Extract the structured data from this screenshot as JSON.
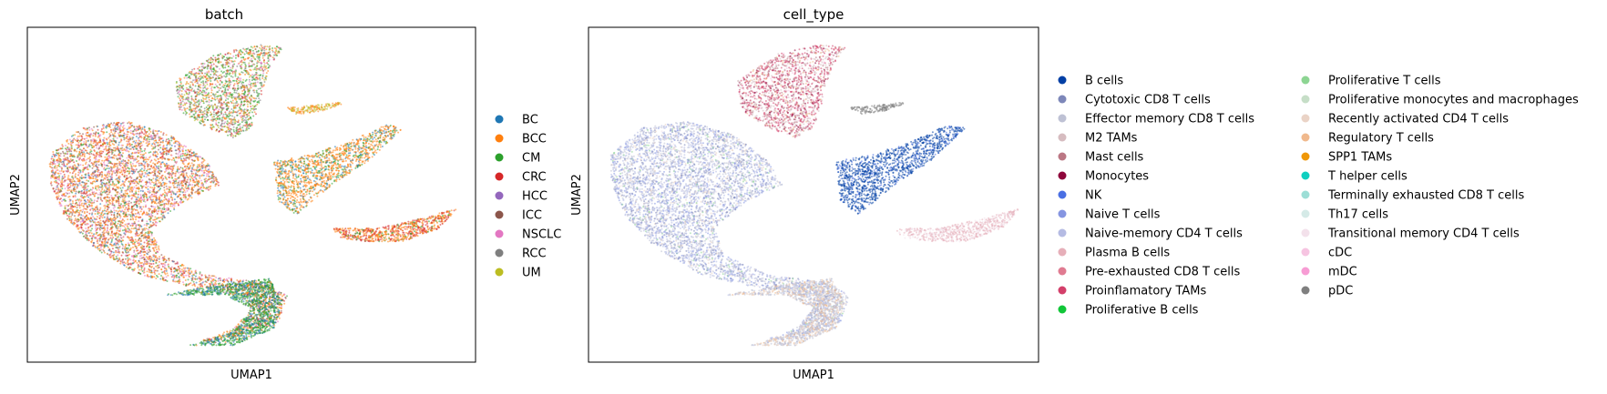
{
  "chart_data": [
    {
      "type": "scatter",
      "title": "batch",
      "xlabel": "UMAP1",
      "ylabel": "UMAP2",
      "grid": false,
      "ticks": "none",
      "legend_placement": "right",
      "legend": [
        {
          "label": "BC",
          "color": "#1f77b4"
        },
        {
          "label": "BCC",
          "color": "#ff7f0e"
        },
        {
          "label": "CM",
          "color": "#2ca02c"
        },
        {
          "label": "CRC",
          "color": "#d62728"
        },
        {
          "label": "HCC",
          "color": "#9467bd"
        },
        {
          "label": "ICC",
          "color": "#8c564b"
        },
        {
          "label": "NSCLC",
          "color": "#e377c2"
        },
        {
          "label": "RCC",
          "color": "#7f7f7f"
        },
        {
          "label": "UM",
          "color": "#bcbd22"
        }
      ],
      "regions": [
        {
          "shape": [
            [
              0.05,
              0.38
            ],
            [
              0.12,
              0.3
            ],
            [
              0.22,
              0.28
            ],
            [
              0.32,
              0.32
            ],
            [
              0.4,
              0.4
            ],
            [
              0.43,
              0.47
            ],
            [
              0.35,
              0.52
            ],
            [
              0.28,
              0.6
            ],
            [
              0.3,
              0.68
            ],
            [
              0.4,
              0.74
            ],
            [
              0.52,
              0.76
            ],
            [
              0.58,
              0.8
            ],
            [
              0.56,
              0.88
            ],
            [
              0.45,
              0.93
            ],
            [
              0.38,
              0.94
            ],
            [
              0.46,
              0.9
            ],
            [
              0.5,
              0.84
            ],
            [
              0.48,
              0.8
            ],
            [
              0.38,
              0.78
            ],
            [
              0.25,
              0.74
            ],
            [
              0.15,
              0.66
            ],
            [
              0.08,
              0.56
            ],
            [
              0.05,
              0.46
            ]
          ],
          "mix": [
            [
              "#ff7f0e",
              0.42
            ],
            [
              "#e377c2",
              0.18
            ],
            [
              "#d62728",
              0.12
            ],
            [
              "#8c564b",
              0.1
            ],
            [
              "#2ca02c",
              0.1
            ],
            [
              "#1f77b4",
              0.08
            ]
          ],
          "n": 5200
        },
        {
          "shape": [
            [
              0.3,
              0.8
            ],
            [
              0.42,
              0.77
            ],
            [
              0.54,
              0.75
            ],
            [
              0.57,
              0.82
            ],
            [
              0.55,
              0.9
            ],
            [
              0.46,
              0.95
            ],
            [
              0.36,
              0.95
            ],
            [
              0.46,
              0.91
            ],
            [
              0.5,
              0.84
            ],
            [
              0.44,
              0.8
            ]
          ],
          "mix": [
            [
              "#2ca02c",
              0.6
            ],
            [
              "#1f77b4",
              0.32
            ],
            [
              "#ff7f0e",
              0.08
            ]
          ],
          "n": 1400
        },
        {
          "shape": [
            [
              0.33,
              0.16
            ],
            [
              0.42,
              0.08
            ],
            [
              0.52,
              0.05
            ],
            [
              0.57,
              0.06
            ],
            [
              0.54,
              0.12
            ],
            [
              0.52,
              0.22
            ],
            [
              0.5,
              0.3
            ],
            [
              0.46,
              0.33
            ],
            [
              0.4,
              0.3
            ],
            [
              0.34,
              0.25
            ]
          ],
          "mix": [
            [
              "#2ca02c",
              0.3
            ],
            [
              "#7f7f7f",
              0.2
            ],
            [
              "#ff7f0e",
              0.2
            ],
            [
              "#bcbd22",
              0.1
            ],
            [
              "#d62728",
              0.1
            ],
            [
              "#e377c2",
              0.1
            ]
          ],
          "n": 1600
        },
        {
          "shape": [
            [
              0.55,
              0.4
            ],
            [
              0.63,
              0.38
            ],
            [
              0.72,
              0.34
            ],
            [
              0.8,
              0.29
            ],
            [
              0.84,
              0.3
            ],
            [
              0.76,
              0.4
            ],
            [
              0.68,
              0.47
            ],
            [
              0.6,
              0.56
            ],
            [
              0.56,
              0.52
            ]
          ],
          "mix": [
            [
              "#ff7f0e",
              0.65
            ],
            [
              "#2ca02c",
              0.2
            ],
            [
              "#1f77b4",
              0.15
            ]
          ],
          "n": 1300
        },
        {
          "shape": [
            [
              0.68,
              0.6
            ],
            [
              0.78,
              0.6
            ],
            [
              0.88,
              0.57
            ],
            [
              0.96,
              0.54
            ],
            [
              0.92,
              0.6
            ],
            [
              0.84,
              0.64
            ],
            [
              0.76,
              0.64
            ],
            [
              0.7,
              0.63
            ]
          ],
          "mix": [
            [
              "#ff7f0e",
              0.55
            ],
            [
              "#d62728",
              0.35
            ],
            [
              "#2ca02c",
              0.1
            ]
          ],
          "n": 700
        },
        {
          "shape": [
            [
              0.58,
              0.24
            ],
            [
              0.66,
              0.23
            ],
            [
              0.72,
              0.22
            ],
            [
              0.66,
              0.25
            ],
            [
              0.6,
              0.26
            ]
          ],
          "mix": [
            [
              "#bcbd22",
              0.5
            ],
            [
              "#ff7f0e",
              0.5
            ]
          ],
          "n": 150
        }
      ]
    },
    {
      "type": "scatter",
      "title": "cell_type",
      "xlabel": "UMAP1",
      "ylabel": "UMAP2",
      "grid": false,
      "ticks": "none",
      "legend_placement": "right, two columns",
      "legend": [
        {
          "label": "B cells",
          "color": "#023fa5"
        },
        {
          "label": "Cytotoxic CD8 T cells",
          "color": "#7d87b9"
        },
        {
          "label": "Effector memory CD8 T cells",
          "color": "#bec1d4"
        },
        {
          "label": "M2 TAMs",
          "color": "#d6bcc0"
        },
        {
          "label": "Mast cells",
          "color": "#bb7784"
        },
        {
          "label": "Monocytes",
          "color": "#8e063b"
        },
        {
          "label": "NK",
          "color": "#4a6fe3"
        },
        {
          "label": "Naive T cells",
          "color": "#8595e1"
        },
        {
          "label": "Naive-memory CD4 T cells",
          "color": "#b5bbe3"
        },
        {
          "label": "Plasma B cells",
          "color": "#e6afb9"
        },
        {
          "label": "Pre-exhausted CD8 T cells",
          "color": "#e07b91"
        },
        {
          "label": "Proinflamatory TAMs",
          "color": "#d33f6a"
        },
        {
          "label": "Proliferative B cells",
          "color": "#11c638"
        },
        {
          "label": "Proliferative T cells",
          "color": "#8dd593"
        },
        {
          "label": "Proliferative monocytes and macrophages",
          "color": "#c6dec7"
        },
        {
          "label": "Recently activated CD4 T cells",
          "color": "#ead3c6"
        },
        {
          "label": "Regulatory T cells",
          "color": "#f0b98d"
        },
        {
          "label": "SPP1 TAMs",
          "color": "#ef9708"
        },
        {
          "label": "T helper cells",
          "color": "#0fcfc0"
        },
        {
          "label": "Terminally exhausted CD8 T cells",
          "color": "#9cded6"
        },
        {
          "label": "Th17 cells",
          "color": "#d5eae7"
        },
        {
          "label": "Transitional memory CD4 T cells",
          "color": "#f3e1eb"
        },
        {
          "label": "cDC",
          "color": "#f6c4e1"
        },
        {
          "label": "mDC",
          "color": "#f79cd4"
        },
        {
          "label": "pDC",
          "color": "#7f7f7f"
        }
      ],
      "regions": [
        {
          "shape": [
            [
              0.05,
              0.38
            ],
            [
              0.12,
              0.3
            ],
            [
              0.22,
              0.28
            ],
            [
              0.32,
              0.32
            ],
            [
              0.4,
              0.4
            ],
            [
              0.43,
              0.47
            ],
            [
              0.35,
              0.52
            ],
            [
              0.28,
              0.6
            ],
            [
              0.3,
              0.68
            ],
            [
              0.4,
              0.74
            ],
            [
              0.52,
              0.76
            ],
            [
              0.58,
              0.8
            ],
            [
              0.56,
              0.88
            ],
            [
              0.45,
              0.93
            ],
            [
              0.38,
              0.94
            ],
            [
              0.46,
              0.9
            ],
            [
              0.5,
              0.84
            ],
            [
              0.48,
              0.8
            ],
            [
              0.38,
              0.78
            ],
            [
              0.25,
              0.74
            ],
            [
              0.15,
              0.66
            ],
            [
              0.08,
              0.56
            ],
            [
              0.05,
              0.46
            ]
          ],
          "mix": [
            [
              "#b5bbe3",
              0.35
            ],
            [
              "#bec1d4",
              0.25
            ],
            [
              "#8595e1",
              0.15
            ],
            [
              "#7d87b9",
              0.1
            ],
            [
              "#ead3c6",
              0.08
            ],
            [
              "#8dd593",
              0.04
            ],
            [
              "#f3e1eb",
              0.03
            ]
          ],
          "n": 5200
        },
        {
          "shape": [
            [
              0.3,
              0.8
            ],
            [
              0.42,
              0.77
            ],
            [
              0.54,
              0.75
            ],
            [
              0.57,
              0.82
            ],
            [
              0.55,
              0.9
            ],
            [
              0.46,
              0.95
            ],
            [
              0.36,
              0.95
            ],
            [
              0.46,
              0.91
            ],
            [
              0.5,
              0.84
            ],
            [
              0.44,
              0.8
            ]
          ],
          "mix": [
            [
              "#bec1d4",
              0.45
            ],
            [
              "#ead3c6",
              0.3
            ],
            [
              "#f0b98d",
              0.15
            ],
            [
              "#b5bbe3",
              0.1
            ]
          ],
          "n": 1400
        },
        {
          "shape": [
            [
              0.33,
              0.16
            ],
            [
              0.42,
              0.08
            ],
            [
              0.52,
              0.05
            ],
            [
              0.57,
              0.06
            ],
            [
              0.54,
              0.12
            ],
            [
              0.52,
              0.22
            ],
            [
              0.5,
              0.3
            ],
            [
              0.46,
              0.33
            ],
            [
              0.4,
              0.3
            ],
            [
              0.34,
              0.25
            ]
          ],
          "mix": [
            [
              "#d33f6a",
              0.35
            ],
            [
              "#d6bcc0",
              0.25
            ],
            [
              "#bb7784",
              0.15
            ],
            [
              "#8e063b",
              0.1
            ],
            [
              "#f0b98d",
              0.1
            ],
            [
              "#f6c4e1",
              0.05
            ]
          ],
          "n": 1600
        },
        {
          "shape": [
            [
              0.55,
              0.4
            ],
            [
              0.63,
              0.38
            ],
            [
              0.72,
              0.34
            ],
            [
              0.8,
              0.29
            ],
            [
              0.84,
              0.3
            ],
            [
              0.76,
              0.4
            ],
            [
              0.68,
              0.47
            ],
            [
              0.6,
              0.56
            ],
            [
              0.56,
              0.52
            ]
          ],
          "mix": [
            [
              "#023fa5",
              0.85
            ],
            [
              "#4a6fe3",
              0.15
            ]
          ],
          "n": 1300
        },
        {
          "shape": [
            [
              0.68,
              0.6
            ],
            [
              0.78,
              0.6
            ],
            [
              0.88,
              0.57
            ],
            [
              0.96,
              0.54
            ],
            [
              0.92,
              0.6
            ],
            [
              0.84,
              0.64
            ],
            [
              0.76,
              0.64
            ],
            [
              0.7,
              0.63
            ]
          ],
          "mix": [
            [
              "#e6afb9",
              0.6
            ],
            [
              "#f3e1eb",
              0.4
            ]
          ],
          "n": 700
        },
        {
          "shape": [
            [
              0.58,
              0.24
            ],
            [
              0.66,
              0.23
            ],
            [
              0.72,
              0.22
            ],
            [
              0.66,
              0.25
            ],
            [
              0.6,
              0.26
            ]
          ],
          "mix": [
            [
              "#7f7f7f",
              1.0
            ]
          ],
          "n": 150
        }
      ]
    }
  ]
}
